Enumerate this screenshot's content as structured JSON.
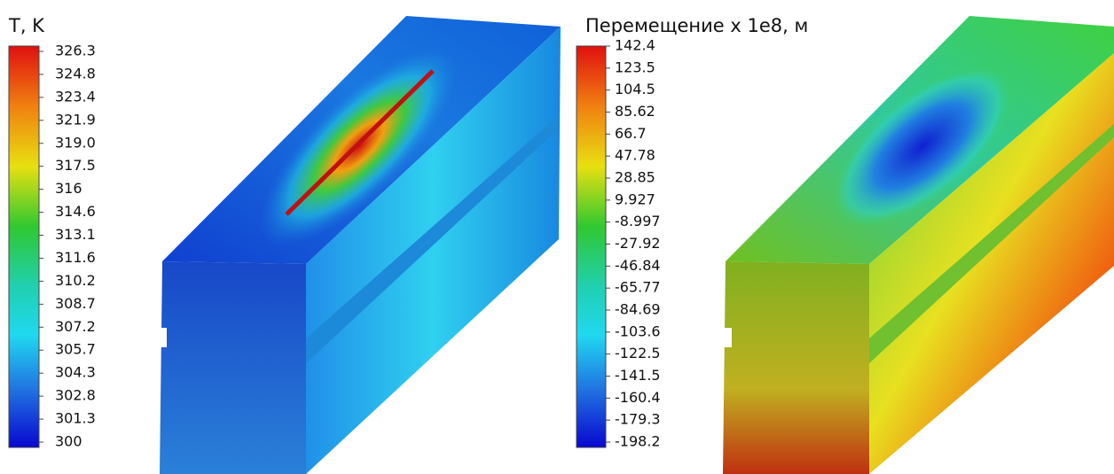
{
  "panels": [
    {
      "title": "T, K",
      "ticks": [
        "326.3",
        "324.8",
        "323.4",
        "321.9",
        "319.0",
        "317.5",
        "316",
        "314.6",
        "313.1",
        "311.6",
        "310.2",
        "308.7",
        "307.2",
        "305.7",
        "304.3",
        "302.8",
        "301.3",
        "300"
      ]
    },
    {
      "title": "Перемещение х 1е8, м",
      "ticks": [
        "142.4",
        "123.5",
        "104.5",
        "85.62",
        "66.7",
        "47.78",
        "28.85",
        "9.927",
        "-8.997",
        "-27.92",
        "-46.84",
        "-65.77",
        "-84.69",
        "-103.6",
        "-122.5",
        "-141.5",
        "-160.4",
        "-179.3",
        "-198.2"
      ]
    }
  ]
}
